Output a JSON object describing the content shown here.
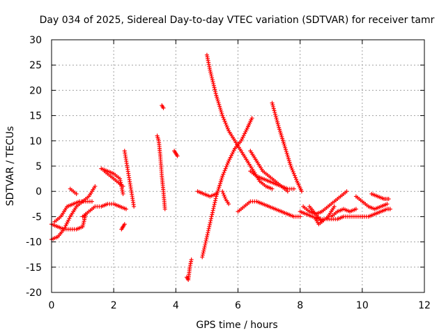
{
  "chart_data": {
    "type": "scatter",
    "title": "Day 034 of 2025, Sidereal Day-to-day VTEC variation (SDTVAR) for receiver tamr",
    "xlabel": "GPS time / hours",
    "ylabel": "SDTVAR / TECUs",
    "xlim": [
      0,
      12
    ],
    "ylim": [
      -20,
      30
    ],
    "xticks": [
      0,
      2,
      4,
      6,
      8,
      10,
      12
    ],
    "yticks": [
      -20,
      -15,
      -10,
      -5,
      0,
      5,
      10,
      15,
      20,
      25,
      30
    ],
    "grid": true,
    "marker": "+",
    "color": "#ff0000",
    "series": [
      {
        "name": "arc-1",
        "x": [
          0.0,
          0.2,
          0.4,
          0.6,
          0.8,
          1.0,
          1.2,
          1.4
        ],
        "y": [
          -9.5,
          -9.0,
          -7.5,
          -5.0,
          -3.0,
          -2.0,
          -1.0,
          1.0
        ]
      },
      {
        "name": "arc-2",
        "x": [
          0.0,
          0.2,
          0.4,
          0.6,
          0.8,
          1.0,
          1.1
        ],
        "y": [
          -6.5,
          -7.0,
          -7.5,
          -7.5,
          -7.5,
          -7.0,
          -4.5
        ]
      },
      {
        "name": "arc-3",
        "x": [
          0.1,
          0.3,
          0.5,
          0.7,
          0.9,
          1.1,
          1.3
        ],
        "y": [
          -6.0,
          -5.0,
          -3.0,
          -2.5,
          -2.0,
          -2.0,
          -2.0
        ]
      },
      {
        "name": "arc-4",
        "x": [
          0.6,
          0.7,
          0.8
        ],
        "y": [
          0.5,
          0.0,
          -0.5
        ]
      },
      {
        "name": "arc-5",
        "x": [
          1.0,
          1.2,
          1.4,
          1.6,
          1.8,
          2.0,
          2.2,
          2.4
        ],
        "y": [
          -5.0,
          -4.0,
          -3.0,
          -3.0,
          -2.5,
          -2.5,
          -3.0,
          -3.5
        ]
      },
      {
        "name": "arc-6",
        "x": [
          1.6,
          1.8,
          2.0,
          2.2,
          2.3
        ],
        "y": [
          4.5,
          4.0,
          3.5,
          2.5,
          -0.5
        ]
      },
      {
        "name": "arc-7",
        "x": [
          1.7,
          1.9,
          2.1,
          2.3
        ],
        "y": [
          4.0,
          3.0,
          2.0,
          1.0
        ]
      },
      {
        "name": "arc-8",
        "x": [
          2.25,
          2.3,
          2.35
        ],
        "y": [
          -7.5,
          -7.0,
          -6.5
        ]
      },
      {
        "name": "arc-9",
        "x": [
          2.35,
          2.65
        ],
        "y": [
          8.0,
          -3.0
        ]
      },
      {
        "name": "arc-10",
        "x": [
          3.4,
          3.45,
          3.5,
          3.55,
          3.6,
          3.65
        ],
        "y": [
          11.0,
          10.0,
          7.0,
          3.0,
          0.0,
          -3.5
        ]
      },
      {
        "name": "arc-11",
        "x": [
          3.55,
          3.6
        ],
        "y": [
          17.0,
          16.5
        ]
      },
      {
        "name": "arc-12",
        "x": [
          3.95,
          4.0,
          4.05
        ],
        "y": [
          8.0,
          7.5,
          7.0
        ]
      },
      {
        "name": "arc-13",
        "x": [
          4.35,
          4.4,
          4.45,
          4.5
        ],
        "y": [
          -17.0,
          -17.5,
          -15.0,
          -13.5
        ]
      },
      {
        "name": "arc-14",
        "x": [
          4.85,
          5.0,
          5.15,
          5.3,
          5.5,
          5.7,
          5.9,
          6.1,
          6.3,
          6.45
        ],
        "y": [
          -13.0,
          -9.0,
          -5.0,
          -1.0,
          3.0,
          6.0,
          8.5,
          10.0,
          12.5,
          14.5
        ]
      },
      {
        "name": "arc-15",
        "x": [
          5.0,
          5.1,
          5.3,
          5.5,
          5.7,
          5.9,
          6.1,
          6.3,
          6.5,
          6.7,
          6.9,
          7.1
        ],
        "y": [
          27.0,
          24.0,
          19.0,
          15.0,
          12.0,
          10.0,
          8.0,
          6.0,
          4.0,
          2.0,
          1.0,
          0.5
        ]
      },
      {
        "name": "arc-16",
        "x": [
          4.7,
          4.9,
          5.1,
          5.3
        ],
        "y": [
          0.0,
          -0.5,
          -1.0,
          -0.5
        ]
      },
      {
        "name": "arc-17",
        "x": [
          5.5,
          5.6,
          5.7
        ],
        "y": [
          0.0,
          -1.5,
          -2.5
        ]
      },
      {
        "name": "arc-18",
        "x": [
          6.0,
          6.2,
          6.4,
          6.6,
          6.8,
          7.0,
          7.2,
          7.4,
          7.6,
          7.8,
          8.0
        ],
        "y": [
          -4.0,
          -3.0,
          -2.0,
          -2.0,
          -2.5,
          -3.0,
          -3.5,
          -4.0,
          -4.5,
          -5.0,
          -5.0
        ]
      },
      {
        "name": "arc-19",
        "x": [
          6.4,
          6.6,
          6.8,
          7.0,
          7.2,
          7.4,
          7.6,
          7.8
        ],
        "y": [
          4.0,
          3.0,
          2.5,
          2.0,
          1.5,
          1.0,
          0.5,
          0.5
        ]
      },
      {
        "name": "arc-20",
        "x": [
          6.4,
          6.6,
          6.8,
          7.0,
          7.2,
          7.4,
          7.6
        ],
        "y": [
          8.0,
          6.0,
          4.0,
          3.0,
          2.0,
          1.0,
          0.0
        ]
      },
      {
        "name": "arc-21",
        "x": [
          7.1,
          7.3,
          7.5,
          7.7,
          7.9,
          8.05
        ],
        "y": [
          17.5,
          13.0,
          9.0,
          5.0,
          2.0,
          0.0
        ]
      },
      {
        "name": "arc-22",
        "x": [
          8.1,
          8.3,
          8.5,
          8.7,
          8.9,
          9.1,
          9.3,
          9.5
        ],
        "y": [
          -3.0,
          -4.0,
          -4.5,
          -4.0,
          -3.0,
          -2.0,
          -1.0,
          0.0
        ]
      },
      {
        "name": "arc-23",
        "x": [
          8.0,
          8.2,
          8.4,
          8.6,
          8.8,
          9.0,
          9.2,
          9.4,
          9.6,
          9.8,
          10.0
        ],
        "y": [
          -4.0,
          -4.5,
          -5.0,
          -5.5,
          -5.5,
          -5.5,
          -5.5,
          -5.0,
          -5.0,
          -5.0,
          -5.0
        ]
      },
      {
        "name": "arc-24",
        "x": [
          8.3,
          8.5,
          8.7,
          8.9,
          9.1
        ],
        "y": [
          -3.0,
          -4.5,
          -6.0,
          -5.0,
          -3.0
        ]
      },
      {
        "name": "arc-25",
        "x": [
          8.5,
          8.6,
          8.7
        ],
        "y": [
          -5.5,
          -6.5,
          -6.0
        ]
      },
      {
        "name": "arc-26",
        "x": [
          9.0,
          9.2,
          9.4,
          9.6,
          9.8
        ],
        "y": [
          -5.0,
          -4.0,
          -3.5,
          -4.0,
          -3.5
        ]
      },
      {
        "name": "arc-27",
        "x": [
          9.8,
          10.0,
          10.2,
          10.4,
          10.6,
          10.8
        ],
        "y": [
          -1.0,
          -2.0,
          -3.0,
          -3.5,
          -3.0,
          -2.5
        ]
      },
      {
        "name": "arc-28",
        "x": [
          10.0,
          10.2,
          10.4,
          10.6,
          10.8,
          10.9
        ],
        "y": [
          -5.0,
          -5.0,
          -4.5,
          -4.0,
          -3.5,
          -3.5
        ]
      },
      {
        "name": "arc-29",
        "x": [
          10.3,
          10.5,
          10.7,
          10.85
        ],
        "y": [
          -0.5,
          -1.0,
          -1.5,
          -1.5
        ]
      }
    ]
  }
}
